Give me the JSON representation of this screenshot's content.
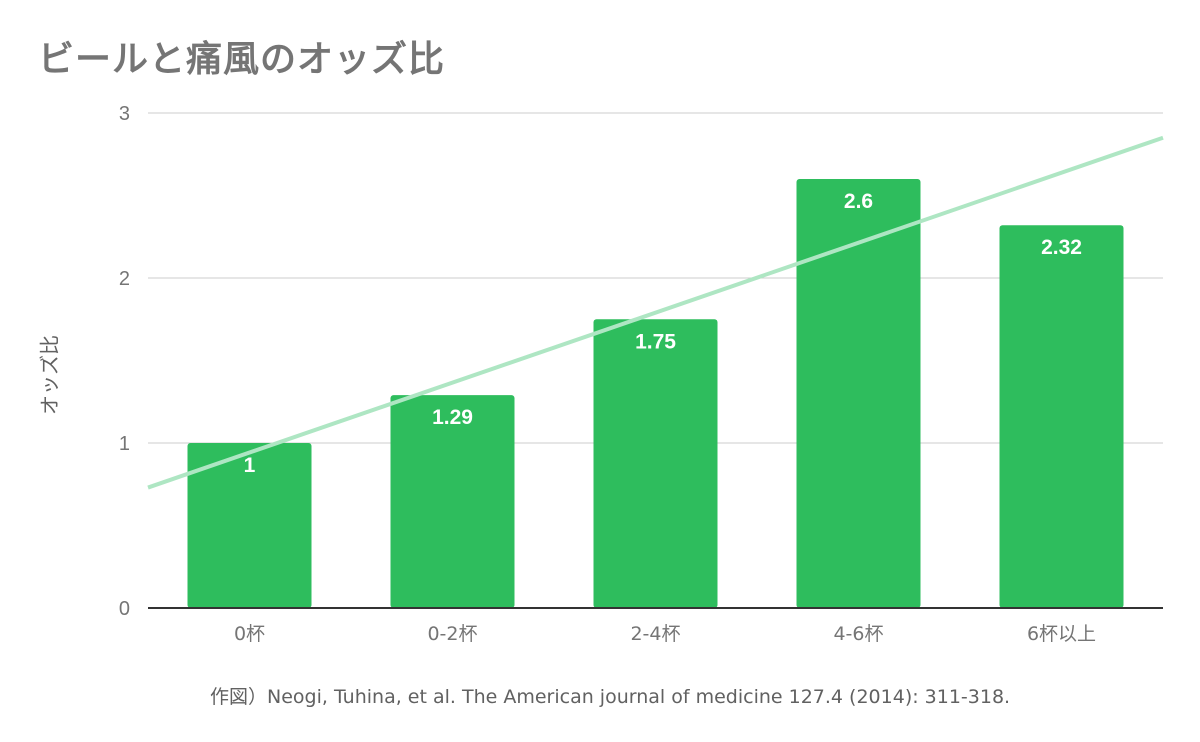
{
  "chart_data": {
    "type": "bar",
    "title": "ビールと痛風のオッズ比",
    "ylabel": "オッズ比",
    "xlabel": "",
    "categories": [
      "0杯",
      "0-2杯",
      "2-4杯",
      "4-6杯",
      "6杯以上"
    ],
    "values": [
      1,
      1.29,
      1.75,
      2.6,
      2.32
    ],
    "value_labels": [
      "1",
      "1.29",
      "1.75",
      "2.6",
      "2.32"
    ],
    "ylim": [
      0,
      3
    ],
    "yticks": [
      "0",
      "1",
      "2",
      "3"
    ],
    "grid": true,
    "trendline": {
      "type": "linear",
      "start_value": 0.73,
      "end_value": 2.85
    },
    "colors": {
      "bar": "#2ebd5d",
      "trendline": "#aee6c3",
      "grid": "#cccccc",
      "axis": "#333333"
    }
  },
  "source": "作図）Neogi, Tuhina, et al. The American journal of medicine 127.4 (2014): 311-318."
}
